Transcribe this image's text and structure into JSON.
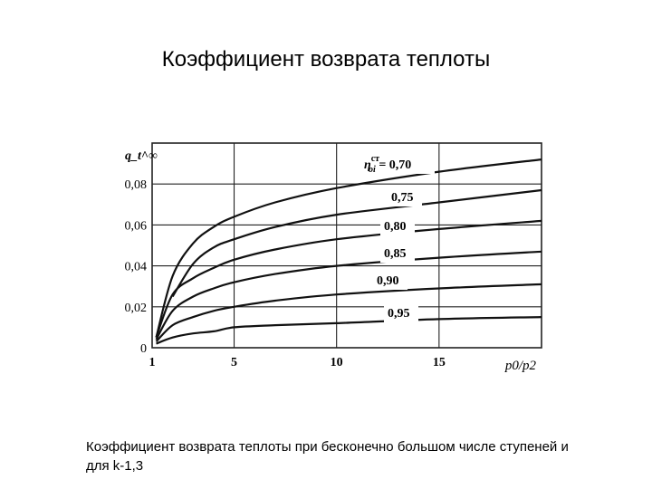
{
  "slide": {
    "title": "Коэффициент возврата теплоты",
    "caption": "Коэффициент возврата теплоты при бесконечно большом числе ступеней и для k-1,3"
  },
  "chart_data": {
    "type": "line",
    "title": "",
    "ylabel": "q_t^∞",
    "xlabel": "p0/p2",
    "xlim": [
      1,
      20
    ],
    "ylim": [
      0,
      0.1
    ],
    "x_ticks": [
      1,
      5,
      10,
      15
    ],
    "x_tick_labels": [
      "1",
      "5",
      "10",
      "15"
    ],
    "y_ticks": [
      0,
      0.02,
      0.04,
      0.06,
      0.08
    ],
    "y_tick_labels": [
      "0",
      "0,02",
      "0,04",
      "0,06",
      "0,08"
    ],
    "grid": true,
    "curve_label_prefix": "η",
    "curve_label_superscript": "ст",
    "curve_label_subscript": "oi",
    "curve_label_equals": "=",
    "series": [
      {
        "name": "0,70",
        "x": [
          1.2,
          2,
          3,
          4,
          5,
          7,
          10,
          15,
          20
        ],
        "values": [
          0.005,
          0.035,
          0.051,
          0.059,
          0.064,
          0.071,
          0.078,
          0.086,
          0.092
        ]
      },
      {
        "name": "0,75",
        "x": [
          2,
          3,
          4,
          5,
          7,
          10,
          15,
          20
        ],
        "values": [
          0.025,
          0.041,
          0.049,
          0.053,
          0.059,
          0.065,
          0.071,
          0.077
        ]
      },
      {
        "name": "0,80",
        "x": [
          1.2,
          2,
          3,
          4,
          5,
          7,
          10,
          15,
          20
        ],
        "values": [
          0.005,
          0.026,
          0.034,
          0.039,
          0.043,
          0.048,
          0.053,
          0.058,
          0.062
        ]
      },
      {
        "name": "0,85",
        "x": [
          1.2,
          2,
          3,
          4,
          5,
          7,
          10,
          15,
          20
        ],
        "values": [
          0.004,
          0.018,
          0.025,
          0.029,
          0.032,
          0.036,
          0.04,
          0.044,
          0.047
        ]
      },
      {
        "name": "0,90",
        "x": [
          1.2,
          2,
          3,
          4,
          5,
          7,
          10,
          15,
          20
        ],
        "values": [
          0.003,
          0.011,
          0.015,
          0.018,
          0.02,
          0.023,
          0.026,
          0.029,
          0.031
        ]
      },
      {
        "name": "0,95",
        "x": [
          1.2,
          2,
          3,
          4,
          5,
          7,
          10,
          15,
          20
        ],
        "values": [
          0.002,
          0.005,
          0.007,
          0.008,
          0.01,
          0.011,
          0.012,
          0.014,
          0.015
        ]
      }
    ],
    "line_color": "#111111",
    "grid_color": "#222222"
  }
}
